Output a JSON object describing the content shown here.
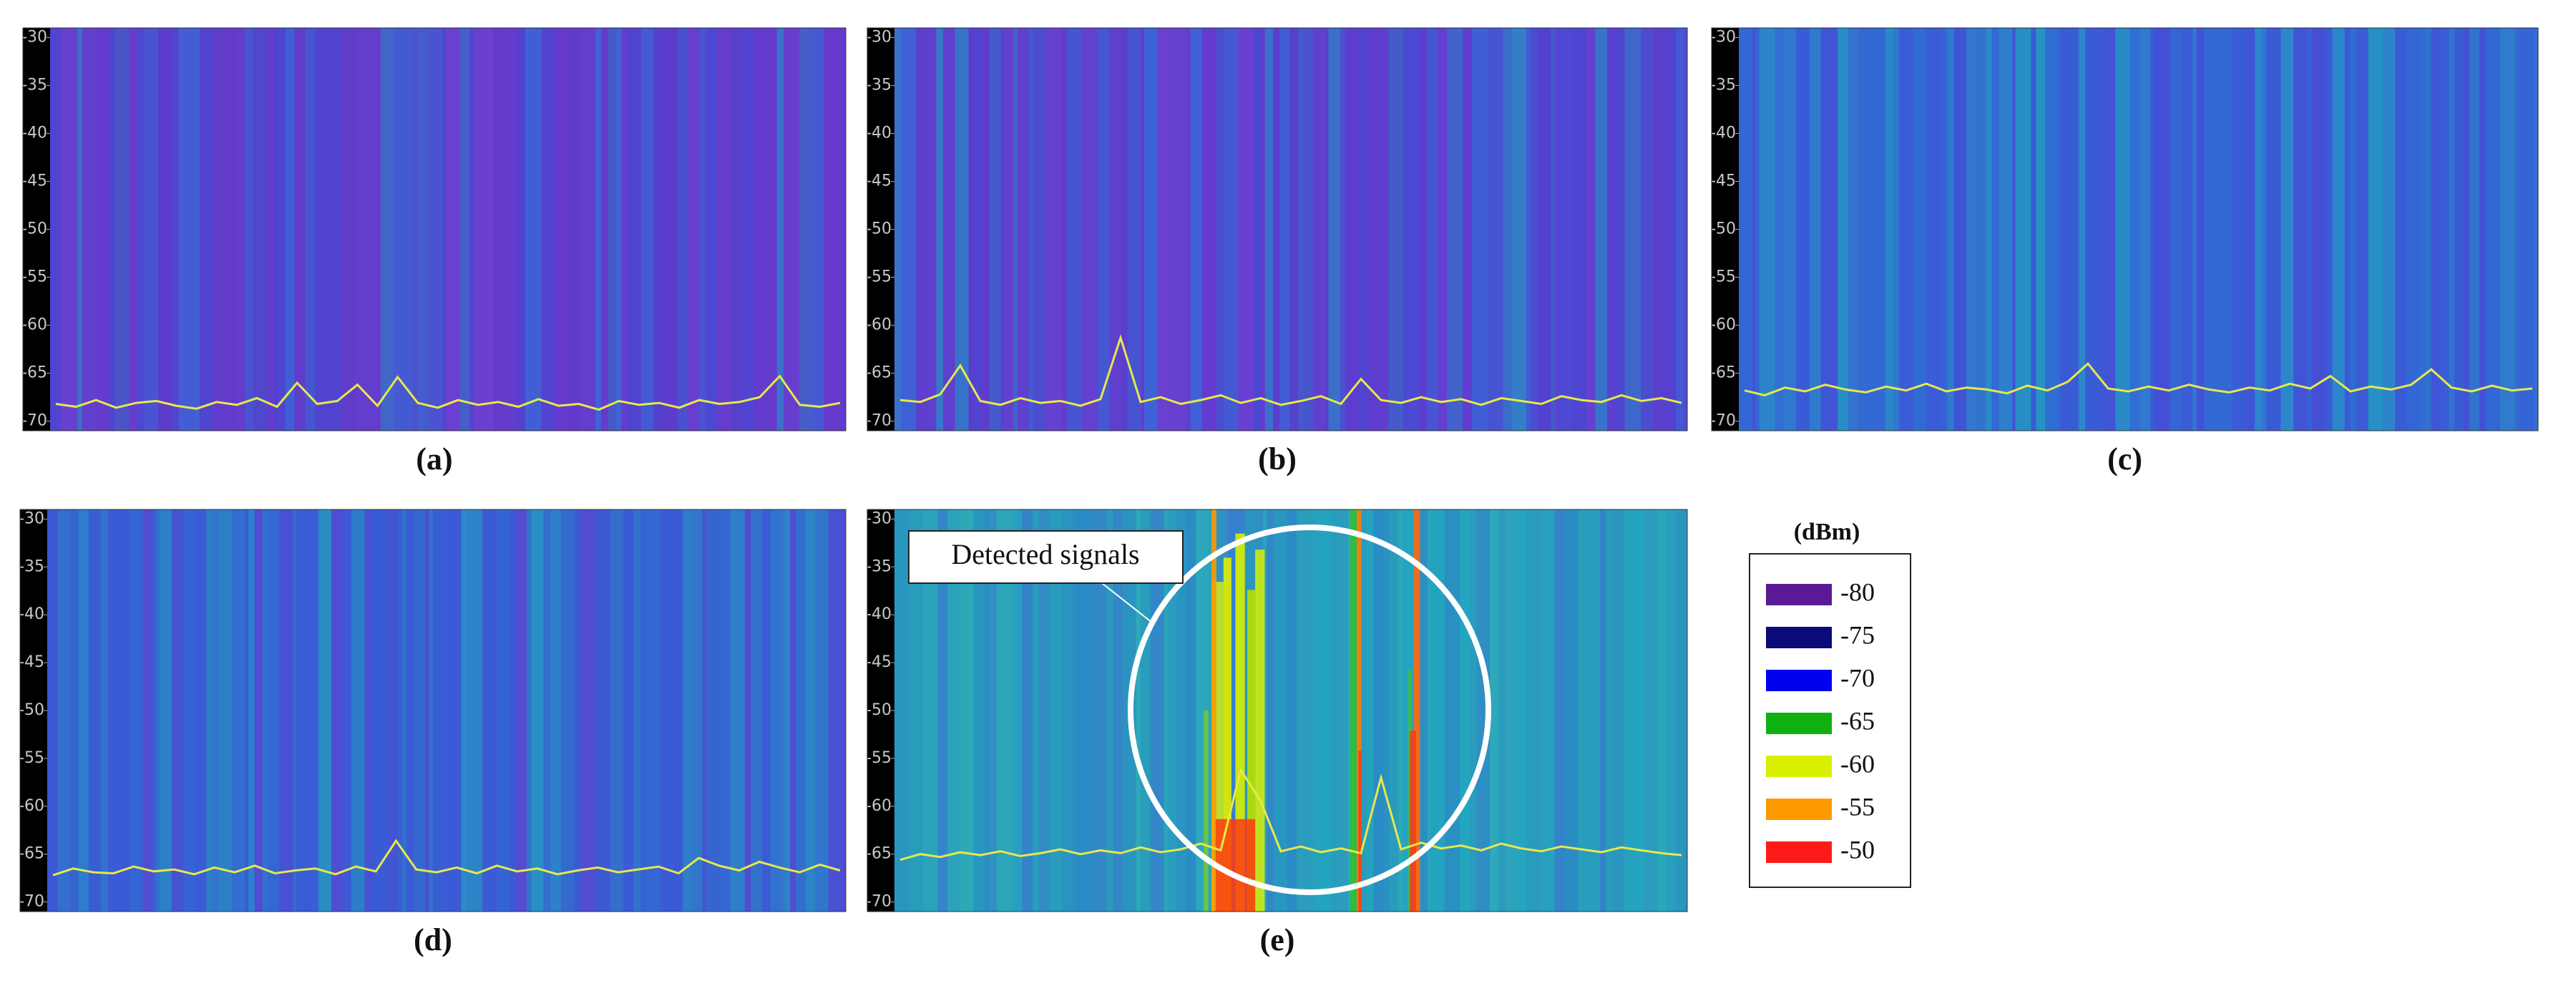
{
  "chart_data": [
    {
      "type": "line",
      "title": "(a)",
      "ylim": [
        -71,
        -29
      ],
      "yticks": [
        -30,
        -35,
        -40,
        -45,
        -50,
        -55,
        -60,
        -65,
        -70
      ],
      "background": "#5a3cc8",
      "color": "#e8e84a",
      "values": [
        -68.2,
        -68.5,
        -67.8,
        -68.6,
        -68.1,
        -67.9,
        -68.4,
        -68.7,
        -68.0,
        -68.3,
        -67.6,
        -68.5,
        -66.0,
        -68.2,
        -67.9,
        -66.2,
        -68.4,
        -65.4,
        -68.1,
        -68.6,
        -67.8,
        -68.3,
        -68.0,
        -68.5,
        -67.7,
        -68.4,
        -68.2,
        -68.8,
        -67.9,
        -68.3,
        -68.1,
        -68.6,
        -67.8,
        -68.2,
        -68.0,
        -67.5,
        -65.3,
        -68.3,
        -68.5,
        -68.1
      ]
    },
    {
      "type": "line",
      "title": "(b)",
      "ylim": [
        -71,
        -29
      ],
      "yticks": [
        -30,
        -35,
        -40,
        -45,
        -50,
        -55,
        -60,
        -65,
        -70
      ],
      "background": "#5440cc",
      "color": "#e8e84a",
      "values": [
        -67.8,
        -68.0,
        -67.2,
        -64.2,
        -67.9,
        -68.3,
        -67.6,
        -68.1,
        -67.9,
        -68.4,
        -67.7,
        -61.3,
        -68.0,
        -67.5,
        -68.2,
        -67.8,
        -67.3,
        -68.1,
        -67.6,
        -68.3,
        -67.9,
        -67.4,
        -68.2,
        -65.6,
        -67.8,
        -68.1,
        -67.5,
        -68.0,
        -67.7,
        -68.3,
        -67.6,
        -67.9,
        -68.2,
        -67.4,
        -67.8,
        -68.0,
        -67.3,
        -67.9,
        -67.6,
        -68.1
      ]
    },
    {
      "type": "line",
      "title": "(c)",
      "ylim": [
        -71,
        -29
      ],
      "yticks": [
        -30,
        -35,
        -40,
        -45,
        -50,
        -55,
        -60,
        -65,
        -70
      ],
      "background": "#3a5cd6",
      "color": "#e8e84a",
      "values": [
        -66.8,
        -67.3,
        -66.5,
        -66.9,
        -66.2,
        -66.7,
        -67.0,
        -66.4,
        -66.8,
        -66.1,
        -66.9,
        -66.5,
        -66.7,
        -67.1,
        -66.3,
        -66.8,
        -65.9,
        -64.0,
        -66.6,
        -66.9,
        -66.4,
        -66.8,
        -66.2,
        -66.7,
        -67.0,
        -66.5,
        -66.8,
        -66.1,
        -66.6,
        -65.3,
        -66.9,
        -66.4,
        -66.7,
        -66.2,
        -64.6,
        -66.5,
        -66.9,
        -66.3,
        -66.8,
        -66.6
      ]
    },
    {
      "type": "line",
      "title": "(d)",
      "ylim": [
        -71,
        -29
      ],
      "yticks": [
        -30,
        -35,
        -40,
        -45,
        -50,
        -55,
        -60,
        -65,
        -70
      ],
      "background": "#3d58d4",
      "color": "#e8e84a",
      "values": [
        -67.2,
        -66.5,
        -66.9,
        -67.0,
        -66.3,
        -66.8,
        -66.6,
        -67.1,
        -66.4,
        -66.9,
        -66.2,
        -67.0,
        -66.7,
        -66.5,
        -67.1,
        -66.3,
        -66.8,
        -63.6,
        -66.6,
        -66.9,
        -66.4,
        -67.0,
        -66.2,
        -66.8,
        -66.5,
        -67.1,
        -66.7,
        -66.4,
        -66.9,
        -66.6,
        -66.3,
        -67.0,
        -65.4,
        -66.2,
        -66.7,
        -65.8,
        -66.4,
        -66.9,
        -66.1,
        -66.7
      ]
    },
    {
      "type": "line",
      "title": "(e)",
      "ylim": [
        -71,
        -29
      ],
      "yticks": [
        -30,
        -35,
        -40,
        -45,
        -50,
        -55,
        -60,
        -65,
        -70
      ],
      "background": "#2a9cbc",
      "color": "#e8e84a",
      "annotation": "Detected signals",
      "values": [
        -65.6,
        -65.0,
        -65.3,
        -64.8,
        -65.1,
        -64.7,
        -65.2,
        -64.9,
        -64.5,
        -65.0,
        -64.6,
        -64.9,
        -64.3,
        -64.8,
        -64.5,
        -63.9,
        -64.6,
        -56.2,
        -59.5,
        -64.7,
        -64.2,
        -64.8,
        -64.4,
        -64.9,
        -57.0,
        -64.5,
        -63.8,
        -64.4,
        -64.1,
        -64.6,
        -63.9,
        -64.4,
        -64.7,
        -64.2,
        -64.5,
        -64.8,
        -64.3,
        -64.6,
        -64.9,
        -65.1
      ]
    }
  ],
  "colorbar": {
    "title": "(dBm)",
    "items": [
      {
        "value": -80,
        "color": "#5a1a96"
      },
      {
        "value": -75,
        "color": "#0a0a78"
      },
      {
        "value": -70,
        "color": "#0000f0"
      },
      {
        "value": -65,
        "color": "#11b011"
      },
      {
        "value": -60,
        "color": "#d8f000"
      },
      {
        "value": -55,
        "color": "#ff9900"
      },
      {
        "value": -50,
        "color": "#ff1a1a"
      }
    ]
  }
}
